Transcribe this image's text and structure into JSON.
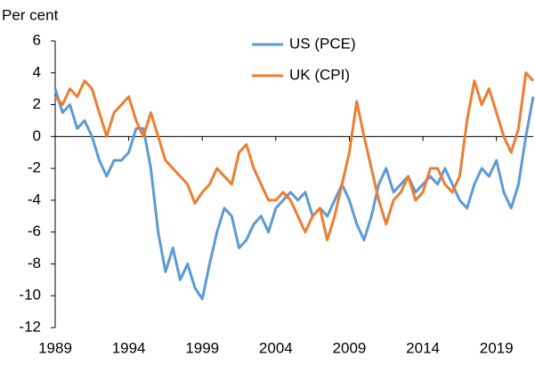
{
  "chart_data": {
    "type": "line",
    "y_axis_label": "Per cent",
    "x": [
      1989,
      1989.5,
      1990,
      1990.5,
      1991,
      1991.5,
      1992,
      1992.5,
      1993,
      1993.5,
      1994,
      1994.5,
      1995,
      1995.5,
      1996,
      1996.5,
      1997,
      1997.5,
      1998,
      1998.5,
      1999,
      1999.5,
      2000,
      2000.5,
      2001,
      2001.5,
      2002,
      2002.5,
      2003,
      2003.5,
      2004,
      2004.5,
      2005,
      2005.5,
      2006,
      2006.5,
      2007,
      2007.5,
      2008,
      2008.5,
      2009,
      2009.5,
      2010,
      2010.5,
      2011,
      2011.5,
      2012,
      2012.5,
      2013,
      2013.5,
      2014,
      2014.5,
      2015,
      2015.5,
      2016,
      2016.5,
      2017,
      2017.5,
      2018,
      2018.5,
      2019,
      2019.5,
      2020,
      2020.5,
      2021,
      2021.5
    ],
    "series": [
      {
        "name": "US (PCE)",
        "color": "#5b9bd5",
        "values": [
          3,
          1.5,
          2,
          0.5,
          1,
          0,
          -1.5,
          -2.5,
          -1.5,
          -1.5,
          -1,
          0.5,
          0.5,
          -2,
          -6,
          -8.5,
          -7,
          -9,
          -8,
          -9.5,
          -10.2,
          -8,
          -6,
          -4.5,
          -5,
          -7,
          -6.5,
          -5.5,
          -5,
          -6,
          -4.5,
          -4,
          -3.5,
          -4,
          -3.5,
          -5,
          -4.5,
          -5,
          -4,
          -3,
          -4,
          -5.5,
          -6.5,
          -5,
          -3,
          -2,
          -3.5,
          -3,
          -2.5,
          -3.5,
          -3,
          -2.5,
          -3,
          -2,
          -3,
          -4,
          -4.5,
          -3,
          -2,
          -2.5,
          -1.5,
          -3.5,
          -4.5,
          -3,
          0,
          2.5
        ]
      },
      {
        "name": "UK (CPI)",
        "color": "#ed7d31",
        "values": [
          2.5,
          2,
          3,
          2.5,
          3.5,
          3,
          1.5,
          0,
          1.5,
          2,
          2.5,
          1,
          0,
          1.5,
          0,
          -1.5,
          -2,
          -2.5,
          -3,
          -4.2,
          -3.5,
          -3,
          -2,
          -2.5,
          -3,
          -1,
          -0.5,
          -2,
          -3,
          -4,
          -4,
          -3.5,
          -4,
          -5,
          -6,
          -5,
          -4.5,
          -6.5,
          -5,
          -3,
          -1,
          2.2,
          0,
          -2,
          -4,
          -5.5,
          -4,
          -3.5,
          -2.5,
          -4,
          -3.5,
          -2,
          -2,
          -3,
          -3.5,
          -2.5,
          1,
          3.5,
          2,
          3,
          1.5,
          0,
          -1,
          0.5,
          4,
          3.5
        ]
      }
    ],
    "xlim": [
      1989,
      2021.5
    ],
    "xticks": [
      1989,
      1994,
      1999,
      2004,
      2009,
      2014,
      2019
    ],
    "ylim": [
      -12,
      6
    ],
    "yticks": [
      -12,
      -10,
      -8,
      -6,
      -4,
      -2,
      0,
      2,
      4,
      6
    ]
  }
}
